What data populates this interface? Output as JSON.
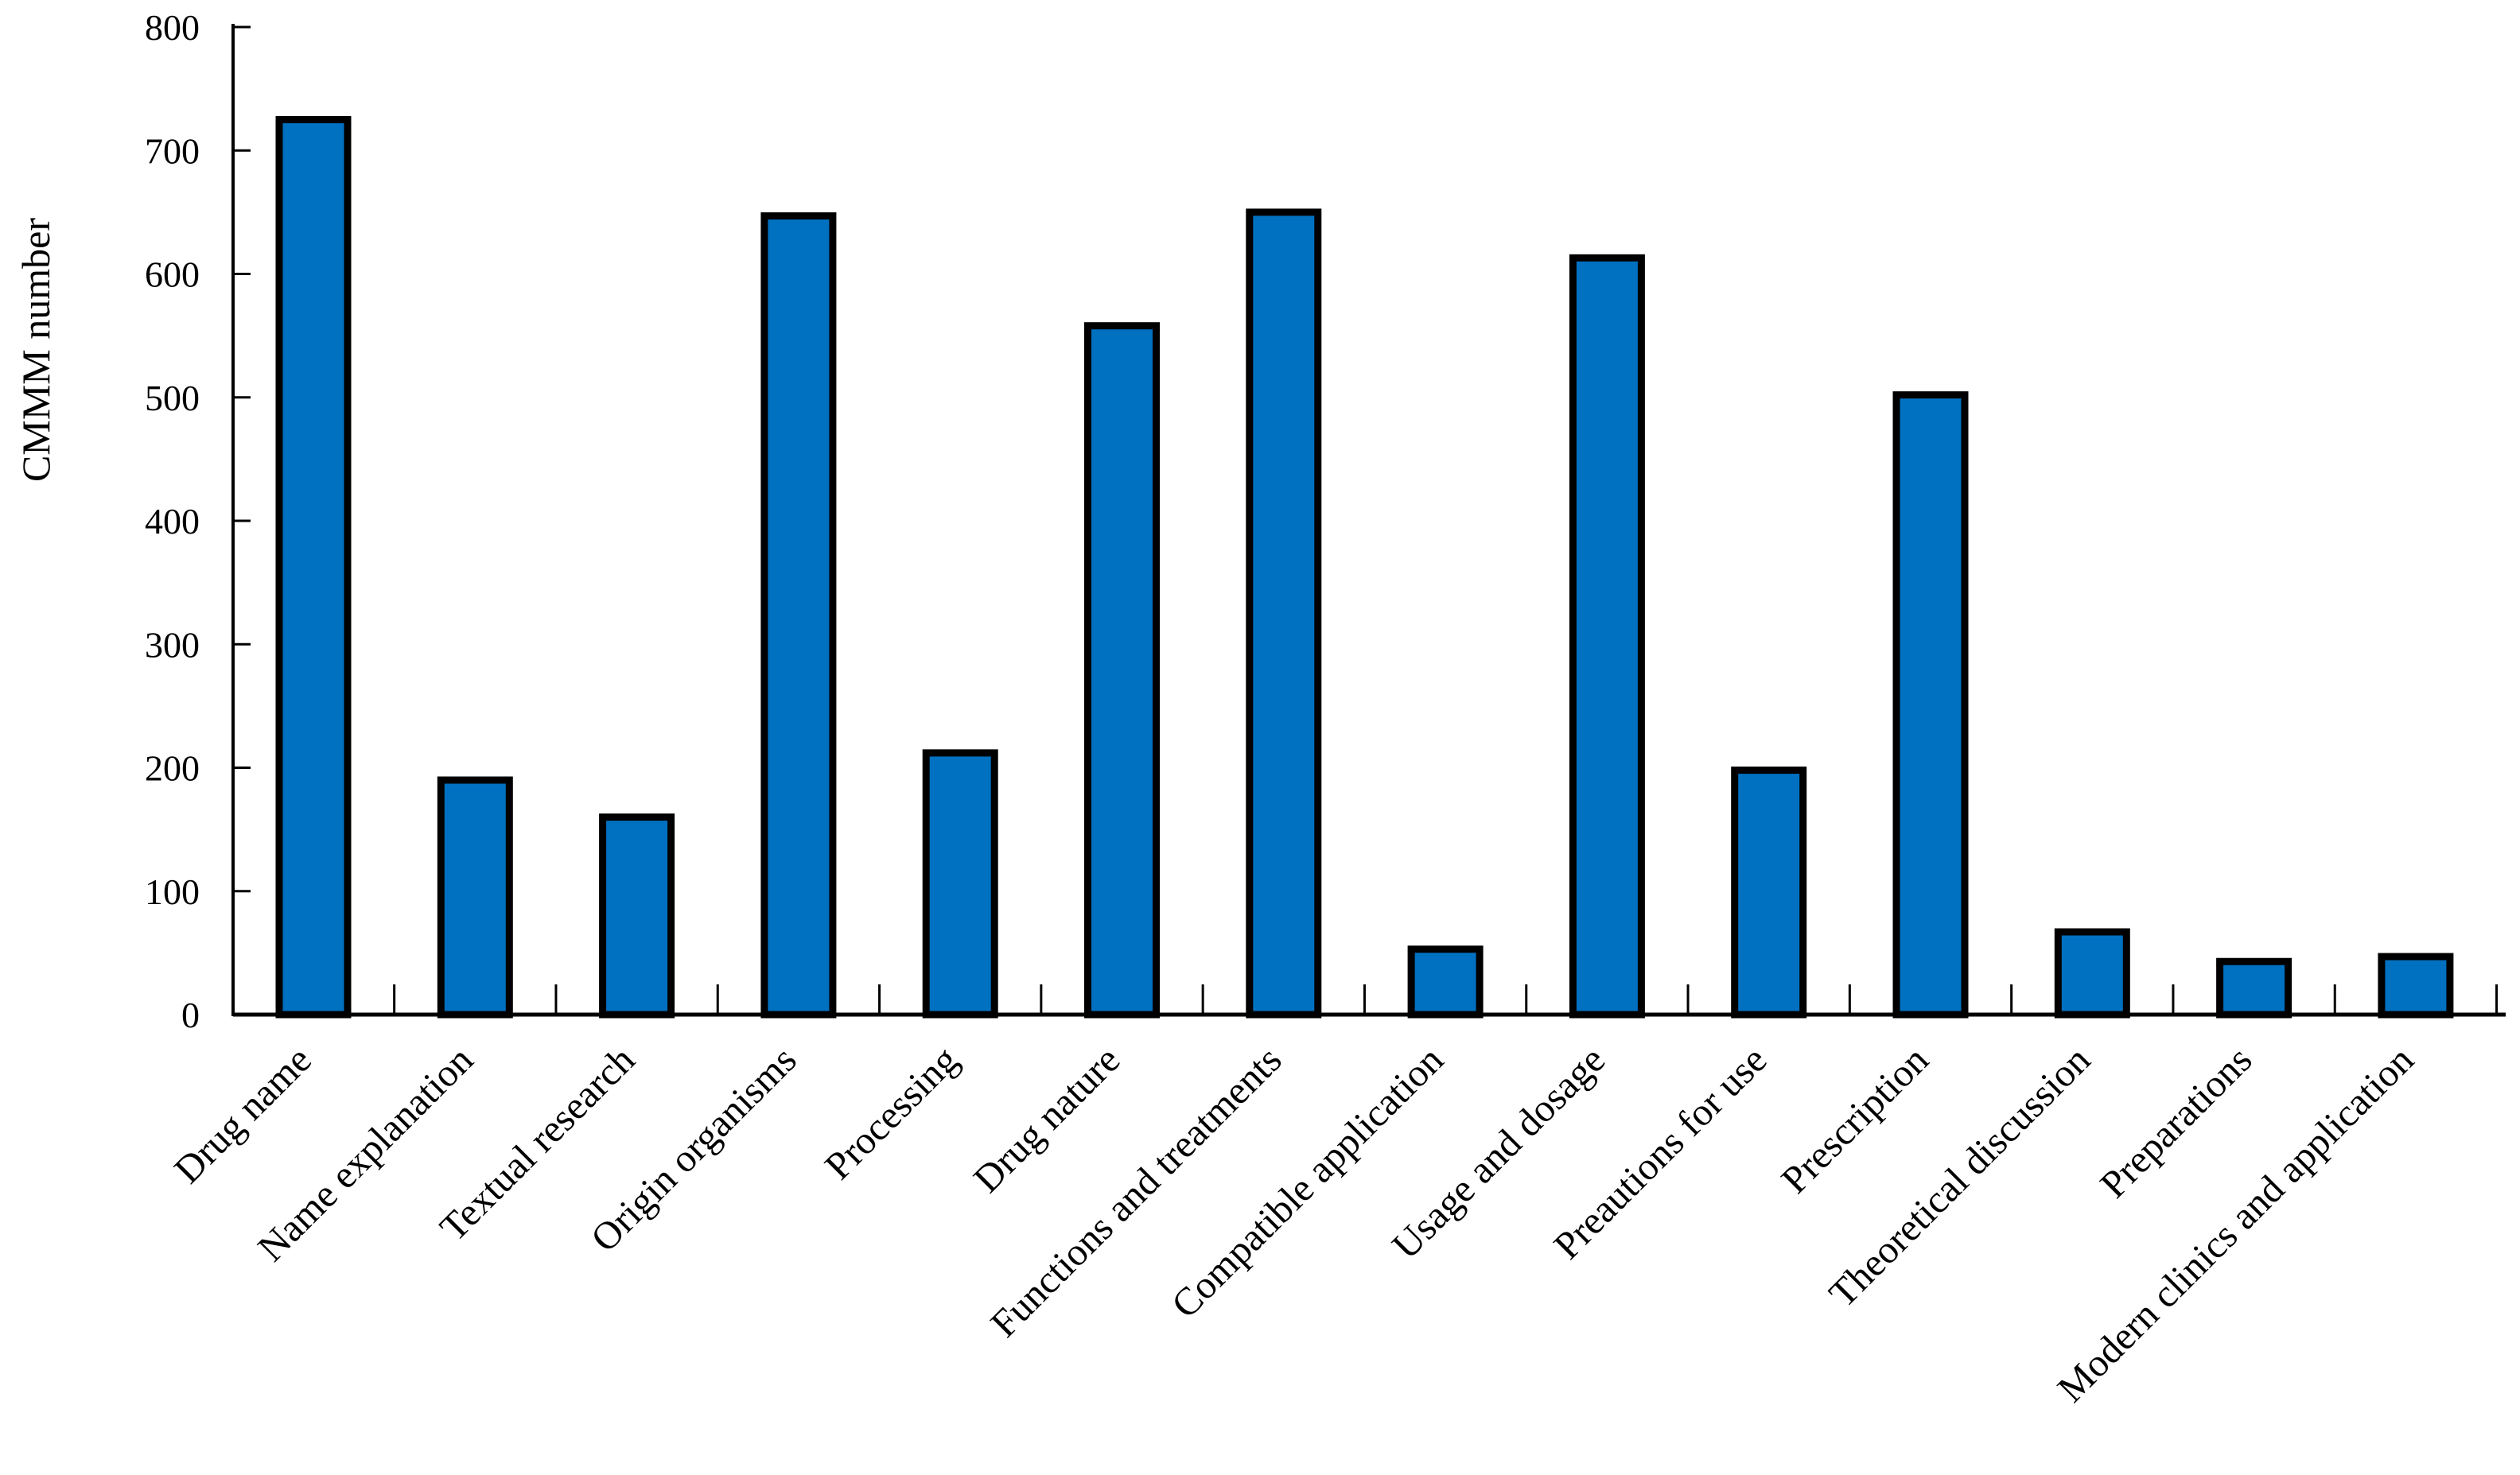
{
  "chart_data": {
    "type": "bar",
    "title": "",
    "xlabel": "",
    "ylabel": "CMMM number",
    "ylim": [
      0,
      800
    ],
    "yticks": [
      0,
      100,
      200,
      300,
      400,
      500,
      600,
      700,
      800
    ],
    "grid": false,
    "legend": "none",
    "bar_color": "#0070C0",
    "bar_edge_color": "#000000",
    "categories": [
      "Drug name",
      "Name explanation",
      "Textual research",
      "Origin organisms",
      "Processing",
      "Drug nature",
      "Functions and treatments",
      "Compatible application",
      "Usage and dosage",
      "Preautions for use",
      "Prescription",
      "Theoretical discussion",
      "Preparations",
      "Modern clinics and application"
    ],
    "values": [
      725,
      190,
      160,
      647,
      212,
      558,
      650,
      53,
      613,
      198,
      502,
      67,
      43,
      47
    ]
  }
}
